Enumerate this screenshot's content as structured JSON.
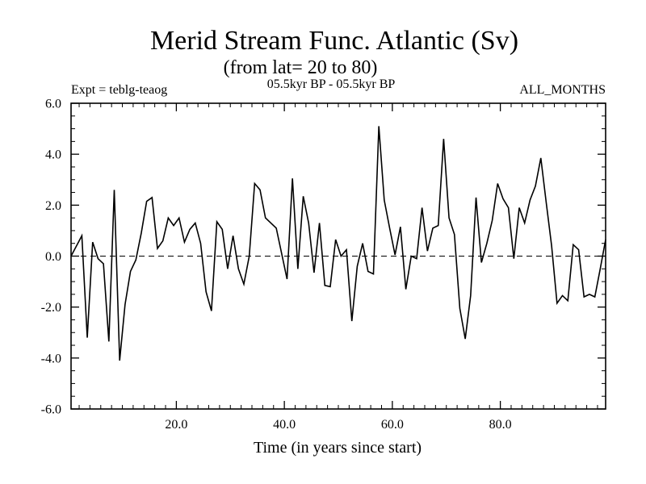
{
  "chart_data": {
    "type": "line",
    "title": "Merid Stream Func. Atlantic (Sv)",
    "subtitle": "(from lat= 20 to 80)",
    "left_note": "Expt = teblg-teaog",
    "center_note": "05.5kyr BP - 05.5kyr BP",
    "right_note": "ALL_MONTHS",
    "xlabel": "Time (in years since start)",
    "ylabel": "",
    "xlim": [
      0.5,
      99.5
    ],
    "ylim": [
      -6,
      6
    ],
    "x_ticks": [
      {
        "value": 20,
        "label": "20.0"
      },
      {
        "value": 40,
        "label": "40.0"
      },
      {
        "value": 60,
        "label": "60.0"
      },
      {
        "value": 80,
        "label": "80.0"
      }
    ],
    "y_ticks": [
      {
        "value": 6,
        "label": "6.0"
      },
      {
        "value": 4,
        "label": "4.0"
      },
      {
        "value": 2,
        "label": "2.0"
      },
      {
        "value": 0,
        "label": "0.0"
      },
      {
        "value": -2,
        "label": "-2.0"
      },
      {
        "value": -4,
        "label": "-4.0"
      },
      {
        "value": -6,
        "label": "-6.0"
      }
    ],
    "zero_line": true,
    "series": [
      {
        "name": "Expt = teblg-teaog",
        "x": [
          0.5,
          1.5,
          2.5,
          3.5,
          4.5,
          5.5,
          6.5,
          7.5,
          8.5,
          9.5,
          10.5,
          11.5,
          12.5,
          13.5,
          14.5,
          15.5,
          16.5,
          17.5,
          18.5,
          19.5,
          20.5,
          21.5,
          22.5,
          23.5,
          24.5,
          25.5,
          26.5,
          27.5,
          28.5,
          29.5,
          30.5,
          31.5,
          32.5,
          33.5,
          34.5,
          35.5,
          36.5,
          37.5,
          38.5,
          39.5,
          40.5,
          41.5,
          42.5,
          43.5,
          44.5,
          45.5,
          46.5,
          47.5,
          48.5,
          49.5,
          50.5,
          51.5,
          52.5,
          53.5,
          54.5,
          55.5,
          56.5,
          57.5,
          58.5,
          59.5,
          60.5,
          61.5,
          62.5,
          63.5,
          64.5,
          65.5,
          66.5,
          67.5,
          68.5,
          69.5,
          70.5,
          71.5,
          72.5,
          73.5,
          74.5,
          75.5,
          76.5,
          77.5,
          78.5,
          79.5,
          80.5,
          81.5,
          82.5,
          83.5,
          84.5,
          85.5,
          86.5,
          87.5,
          88.5,
          89.5,
          90.5,
          91.5,
          92.5,
          93.5,
          94.5,
          95.5,
          96.5,
          97.5,
          98.5,
          99.5
        ],
        "values": [
          0.0,
          0.4,
          0.8,
          -3.2,
          0.55,
          -0.1,
          -0.3,
          -3.35,
          2.6,
          -4.1,
          -1.9,
          -0.6,
          -0.15,
          0.9,
          2.15,
          2.3,
          0.3,
          0.6,
          1.5,
          1.2,
          1.5,
          0.55,
          1.05,
          1.3,
          0.5,
          -1.4,
          -2.15,
          1.35,
          1.05,
          -0.5,
          0.8,
          -0.5,
          -1.1,
          0.0,
          2.85,
          2.6,
          1.5,
          1.3,
          1.1,
          0.1,
          -0.9,
          3.05,
          -0.5,
          2.35,
          1.3,
          -0.65,
          1.3,
          -1.15,
          -1.2,
          0.65,
          0.0,
          0.25,
          -2.55,
          -0.4,
          0.5,
          -0.6,
          -0.7,
          5.1,
          2.2,
          1.1,
          0.05,
          1.15,
          -1.3,
          0.0,
          -0.1,
          1.9,
          0.2,
          1.1,
          1.2,
          4.6,
          1.5,
          0.85,
          -2.05,
          -3.25,
          -1.55,
          2.3,
          -0.25,
          0.5,
          1.4,
          2.85,
          2.25,
          1.9,
          -0.1,
          1.9,
          1.3,
          2.2,
          2.75,
          3.85,
          2.1,
          0.4,
          -1.85,
          -1.55,
          -1.75,
          0.45,
          0.25,
          -1.6,
          -1.5,
          -1.6,
          -0.5,
          0.65
        ]
      }
    ]
  }
}
